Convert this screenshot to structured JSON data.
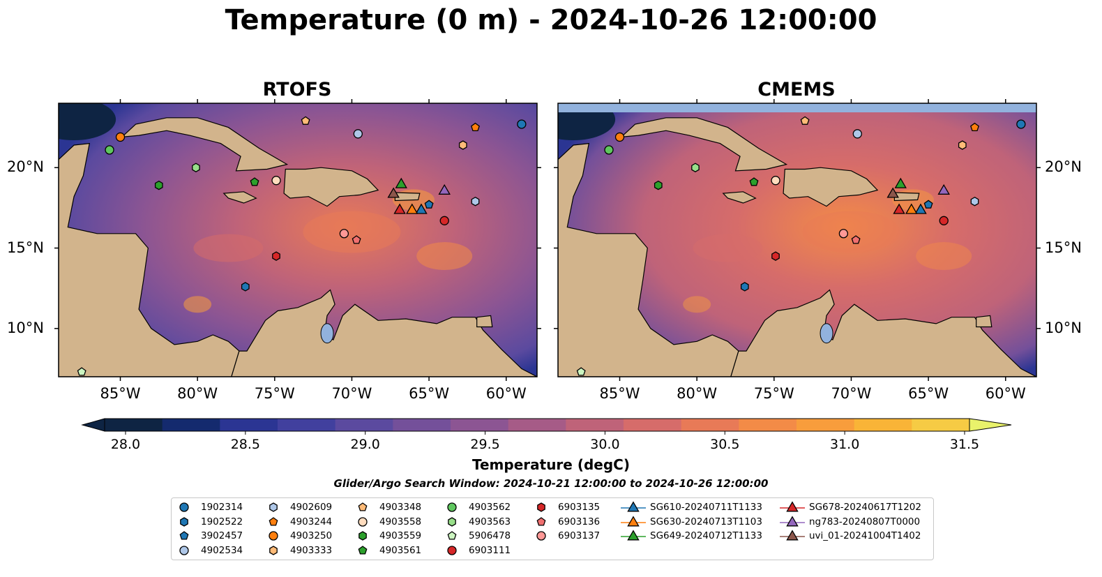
{
  "title": "Temperature (0 m) - 2024-10-26 12:00:00",
  "panels": [
    {
      "title": "RTOFS"
    },
    {
      "title": "CMEMS"
    }
  ],
  "axes": {
    "lon_ticks": [
      "85°W",
      "80°W",
      "75°W",
      "70°W",
      "65°W",
      "60°W"
    ],
    "lon_values": [
      -85,
      -80,
      -75,
      -70,
      -65,
      -60
    ],
    "lat_ticks": [
      "20°N",
      "15°N",
      "10°N"
    ],
    "lat_values": [
      20,
      15,
      10
    ],
    "lon_range": [
      -89,
      -58
    ],
    "lat_range": [
      7,
      24
    ]
  },
  "colorbar": {
    "label": "Temperature (degC)",
    "ticks": [
      "28.0",
      "28.5",
      "29.0",
      "29.5",
      "30.0",
      "30.5",
      "31.0",
      "31.5"
    ],
    "tick_values": [
      28.0,
      28.5,
      29.0,
      29.5,
      30.0,
      30.5,
      31.0,
      31.5
    ],
    "range": [
      28.0,
      31.5
    ],
    "colors": [
      "#0e2443",
      "#142a6e",
      "#2b3593",
      "#41409e",
      "#5b4a9f",
      "#74509a",
      "#8c5593",
      "#a65b87",
      "#bf6379",
      "#d66c6a",
      "#e87a57",
      "#f38b47",
      "#f89d3c",
      "#f9b437",
      "#f6cb44",
      "#e9f26b"
    ]
  },
  "search_window": "Glider/Argo Search Window: 2024-10-21 12:00:00 to 2024-10-26 12:00:00",
  "legend": {
    "columns": [
      [
        {
          "label": "1902314",
          "marker": "circle",
          "color": "#1f77b4"
        },
        {
          "label": "1902522",
          "marker": "hexagon",
          "color": "#1f77b4"
        },
        {
          "label": "3902457",
          "marker": "pentagon",
          "color": "#1f77b4"
        },
        {
          "label": "4902534",
          "marker": "circle",
          "color": "#aec7e8"
        }
      ],
      [
        {
          "label": "4902609",
          "marker": "hexagon",
          "color": "#aec7e8"
        },
        {
          "label": "4903244",
          "marker": "pentagon",
          "color": "#ff7f0e"
        },
        {
          "label": "4903250",
          "marker": "circle",
          "color": "#ff7f0e"
        },
        {
          "label": "4903333",
          "marker": "hexagon",
          "color": "#ffbb78"
        }
      ],
      [
        {
          "label": "4903348",
          "marker": "pentagon",
          "color": "#ffbb78"
        },
        {
          "label": "4903558",
          "marker": "circle",
          "color": "#ffdcbe"
        },
        {
          "label": "4903559",
          "marker": "hexagon",
          "color": "#2ca02c"
        },
        {
          "label": "4903561",
          "marker": "pentagon",
          "color": "#2ca02c"
        }
      ],
      [
        {
          "label": "4903562",
          "marker": "circle",
          "color": "#5fc75f"
        },
        {
          "label": "4903563",
          "marker": "hexagon",
          "color": "#98df8a"
        },
        {
          "label": "5906478",
          "marker": "pentagon",
          "color": "#ccf5c0"
        },
        {
          "label": "6903111",
          "marker": "circle",
          "color": "#d62728"
        }
      ],
      [
        {
          "label": "6903135",
          "marker": "hexagon",
          "color": "#d62728"
        },
        {
          "label": "6903136",
          "marker": "pentagon",
          "color": "#f07070"
        },
        {
          "label": "6903137",
          "marker": "circle",
          "color": "#ff9896"
        }
      ],
      [
        {
          "label": "SG610-20240711T1133",
          "marker": "triangle",
          "color": "#1f77b4"
        },
        {
          "label": "SG630-20240713T1103",
          "marker": "triangle",
          "color": "#ff7f0e"
        },
        {
          "label": "SG649-20240712T1133",
          "marker": "triangle",
          "color": "#2ca02c"
        }
      ],
      [
        {
          "label": "SG678-20240617T1202",
          "marker": "triangle",
          "color": "#d62728"
        },
        {
          "label": "ng783-20240807T0000",
          "marker": "triangle",
          "color": "#9467bd"
        },
        {
          "label": "uvi_01-20241004T1402",
          "marker": "triangle",
          "color": "#8c564b"
        }
      ]
    ]
  },
  "markers": [
    {
      "id": "1902314",
      "lon": -59.0,
      "lat": 22.7
    },
    {
      "id": "1902522",
      "lon": -76.9,
      "lat": 12.6
    },
    {
      "id": "3902457",
      "lon": -65.0,
      "lat": 17.7
    },
    {
      "id": "4902534",
      "lon": -69.6,
      "lat": 22.1
    },
    {
      "id": "4902609",
      "lon": -62.0,
      "lat": 17.9
    },
    {
      "id": "4903244",
      "lon": -62.0,
      "lat": 22.5
    },
    {
      "id": "4903250",
      "lon": -85.0,
      "lat": 21.9
    },
    {
      "id": "4903333",
      "lon": -62.8,
      "lat": 21.4
    },
    {
      "id": "4903348",
      "lon": -73.0,
      "lat": 22.9
    },
    {
      "id": "4903558",
      "lon": -74.9,
      "lat": 19.2
    },
    {
      "id": "4903559",
      "lon": -82.5,
      "lat": 18.9
    },
    {
      "id": "4903561",
      "lon": -76.3,
      "lat": 19.1
    },
    {
      "id": "4903562",
      "lon": -85.7,
      "lat": 21.1
    },
    {
      "id": "4903563",
      "lon": -80.1,
      "lat": 20.0
    },
    {
      "id": "5906478",
      "lon": -87.5,
      "lat": 7.3
    },
    {
      "id": "6903111",
      "lon": -64.0,
      "lat": 16.7
    },
    {
      "id": "6903135",
      "lon": -74.9,
      "lat": 14.5
    },
    {
      "id": "6903136",
      "lon": -69.7,
      "lat": 15.5
    },
    {
      "id": "6903137",
      "lon": -70.5,
      "lat": 15.9
    },
    {
      "id": "SG610-20240711T1133",
      "lon": -65.5,
      "lat": 17.4
    },
    {
      "id": "SG630-20240713T1103",
      "lon": -66.1,
      "lat": 17.4
    },
    {
      "id": "SG649-20240712T1133",
      "lon": -66.8,
      "lat": 19.0
    },
    {
      "id": "SG678-20240617T1202",
      "lon": -66.9,
      "lat": 17.4
    },
    {
      "id": "ng783-20240807T0000",
      "lon": -64.0,
      "lat": 18.6
    },
    {
      "id": "uvi_01-20241004T1402",
      "lon": -67.3,
      "lat": 18.4
    }
  ]
}
